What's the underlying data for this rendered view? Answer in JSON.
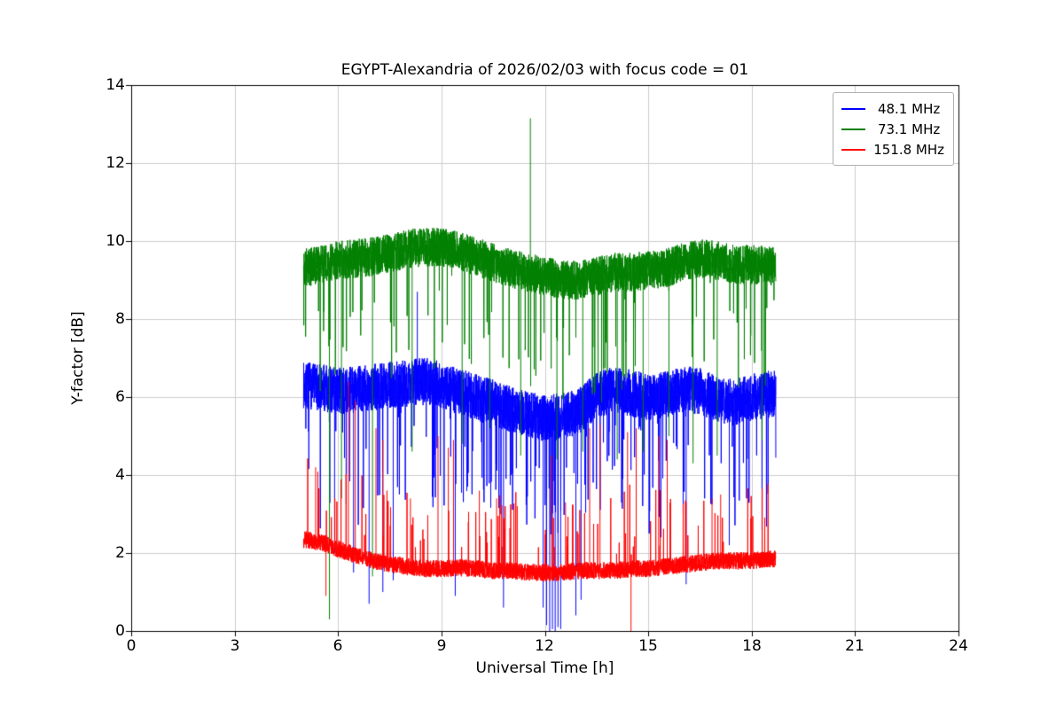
{
  "legend": {
    "labels": [
      " 48.1 MHz",
      " 73.1 MHz",
      "151.8 MHz"
    ]
  },
  "chart_data": {
    "type": "line",
    "title": "EGYPT-Alexandria of 2026/02/03 with focus code = 01",
    "xlabel": "Universal Time [h]",
    "ylabel": "Y-factor [dB]",
    "xlim": [
      0,
      24
    ],
    "ylim": [
      0,
      14
    ],
    "xticks": [
      0,
      3,
      6,
      9,
      12,
      15,
      18,
      21,
      24
    ],
    "yticks": [
      0,
      2,
      4,
      6,
      8,
      10,
      12,
      14
    ],
    "grid": true,
    "legend_position": "upper right",
    "x_start": 5.0,
    "x_end": 18.7,
    "series": [
      {
        "name": "48.1 MHz",
        "color": "#0000ff",
        "seed": 7,
        "noise": 0.6,
        "spike_dir": "down",
        "spike_prob": 0.035,
        "spike_min": 0.8,
        "spike_max": 3.2,
        "baseline": [
          [
            5.0,
            6.3
          ],
          [
            5.5,
            6.25
          ],
          [
            6.0,
            6.15
          ],
          [
            6.5,
            6.2
          ],
          [
            7.0,
            6.25
          ],
          [
            7.5,
            6.3
          ],
          [
            8.0,
            6.35
          ],
          [
            8.5,
            6.45
          ],
          [
            9.0,
            6.3
          ],
          [
            9.5,
            6.15
          ],
          [
            10.0,
            6.0
          ],
          [
            10.5,
            5.85
          ],
          [
            11.0,
            5.7
          ],
          [
            11.5,
            5.55
          ],
          [
            12.0,
            5.45
          ],
          [
            12.5,
            5.5
          ],
          [
            13.0,
            5.65
          ],
          [
            13.5,
            6.05
          ],
          [
            14.0,
            6.2
          ],
          [
            14.5,
            6.1
          ],
          [
            15.0,
            6.0
          ],
          [
            15.5,
            6.05
          ],
          [
            16.0,
            6.2
          ],
          [
            16.5,
            6.15
          ],
          [
            17.0,
            5.95
          ],
          [
            17.5,
            5.85
          ],
          [
            18.0,
            6.0
          ],
          [
            18.7,
            6.1
          ]
        ],
        "events": [
          [
            5.9,
            2.0
          ],
          [
            6.45,
            1.5
          ],
          [
            6.9,
            0.7
          ],
          [
            7.3,
            1.0
          ],
          [
            7.6,
            1.3
          ],
          [
            8.3,
            8.7
          ],
          [
            9.4,
            0.9
          ],
          [
            10.8,
            0.6
          ],
          [
            11.95,
            0.6
          ],
          [
            12.05,
            0.15
          ],
          [
            12.14,
            0.0
          ],
          [
            12.22,
            0.05
          ],
          [
            12.3,
            0.0
          ],
          [
            12.38,
            0.1
          ],
          [
            12.46,
            0.05
          ],
          [
            12.9,
            0.4
          ],
          [
            13.05,
            0.8
          ],
          [
            16.1,
            1.2
          ],
          [
            17.35,
            2.2
          ],
          [
            18.3,
            2.6
          ]
        ]
      },
      {
        "name": "73.1 MHz",
        "color": "#008000",
        "seed": 13,
        "noise": 0.5,
        "spike_dir": "down",
        "spike_prob": 0.022,
        "spike_min": 0.8,
        "spike_max": 3.0,
        "baseline": [
          [
            5.0,
            9.3
          ],
          [
            5.5,
            9.4
          ],
          [
            6.0,
            9.5
          ],
          [
            6.5,
            9.55
          ],
          [
            7.0,
            9.6
          ],
          [
            7.5,
            9.7
          ],
          [
            8.0,
            9.8
          ],
          [
            8.5,
            9.85
          ],
          [
            9.0,
            9.85
          ],
          [
            9.5,
            9.75
          ],
          [
            10.0,
            9.6
          ],
          [
            10.5,
            9.45
          ],
          [
            11.0,
            9.3
          ],
          [
            11.5,
            9.2
          ],
          [
            12.0,
            9.1
          ],
          [
            12.5,
            9.0
          ],
          [
            13.0,
            9.0
          ],
          [
            13.5,
            9.1
          ],
          [
            14.0,
            9.2
          ],
          [
            14.5,
            9.2
          ],
          [
            15.0,
            9.25
          ],
          [
            15.5,
            9.3
          ],
          [
            16.0,
            9.45
          ],
          [
            16.5,
            9.55
          ],
          [
            17.0,
            9.5
          ],
          [
            17.5,
            9.4
          ],
          [
            18.0,
            9.4
          ],
          [
            18.7,
            9.35
          ]
        ],
        "events": [
          [
            5.75,
            0.3
          ],
          [
            6.1,
            3.4
          ],
          [
            7.0,
            1.4
          ],
          [
            8.15,
            4.6
          ],
          [
            9.6,
            4.8
          ],
          [
            10.4,
            5.2
          ],
          [
            11.3,
            4.5
          ],
          [
            11.58,
            13.15
          ],
          [
            12.35,
            4.4
          ],
          [
            13.1,
            4.6
          ],
          [
            14.1,
            4.4
          ],
          [
            14.85,
            4.6
          ],
          [
            15.6,
            5.0
          ],
          [
            16.3,
            4.3
          ],
          [
            17.0,
            4.5
          ],
          [
            18.3,
            4.9
          ]
        ]
      },
      {
        "name": "151.8 MHz",
        "color": "#ff0000",
        "seed": 99,
        "noise": 0.22,
        "spike_dir": "up",
        "spike_prob": 0.02,
        "spike_min": 0.5,
        "spike_max": 2.0,
        "baseline": [
          [
            5.0,
            2.35
          ],
          [
            5.3,
            2.3
          ],
          [
            5.6,
            2.25
          ],
          [
            6.0,
            2.1
          ],
          [
            6.5,
            1.95
          ],
          [
            7.0,
            1.8
          ],
          [
            7.5,
            1.72
          ],
          [
            8.0,
            1.65
          ],
          [
            8.5,
            1.6
          ],
          [
            9.0,
            1.6
          ],
          [
            9.5,
            1.62
          ],
          [
            10.0,
            1.6
          ],
          [
            10.5,
            1.55
          ],
          [
            11.0,
            1.55
          ],
          [
            11.5,
            1.5
          ],
          [
            12.0,
            1.5
          ],
          [
            12.5,
            1.5
          ],
          [
            13.0,
            1.55
          ],
          [
            13.5,
            1.55
          ],
          [
            14.0,
            1.55
          ],
          [
            14.5,
            1.6
          ],
          [
            15.0,
            1.6
          ],
          [
            15.5,
            1.65
          ],
          [
            16.0,
            1.7
          ],
          [
            16.5,
            1.75
          ],
          [
            17.0,
            1.8
          ],
          [
            17.5,
            1.8
          ],
          [
            18.0,
            1.8
          ],
          [
            18.7,
            1.85
          ]
        ],
        "events": [
          [
            5.35,
            4.2
          ],
          [
            5.65,
            0.9
          ],
          [
            6.3,
            6.4
          ],
          [
            6.5,
            5.9
          ],
          [
            7.1,
            5.2
          ],
          [
            7.3,
            4.9
          ],
          [
            8.1,
            3.4
          ],
          [
            8.9,
            5.0
          ],
          [
            9.2,
            4.7
          ],
          [
            9.35,
            4.9
          ],
          [
            10.1,
            3.6
          ],
          [
            10.6,
            3.4
          ],
          [
            11.2,
            3.2
          ],
          [
            12.2,
            4.5
          ],
          [
            12.6,
            3.3
          ],
          [
            13.3,
            5.2
          ],
          [
            13.6,
            5.3
          ],
          [
            14.4,
            5.1
          ],
          [
            14.5,
            0.0
          ],
          [
            14.65,
            5.2
          ],
          [
            15.3,
            5.0
          ],
          [
            15.55,
            4.9
          ],
          [
            16.1,
            3.3
          ],
          [
            16.85,
            3.4
          ],
          [
            17.1,
            3.5
          ]
        ]
      }
    ]
  }
}
